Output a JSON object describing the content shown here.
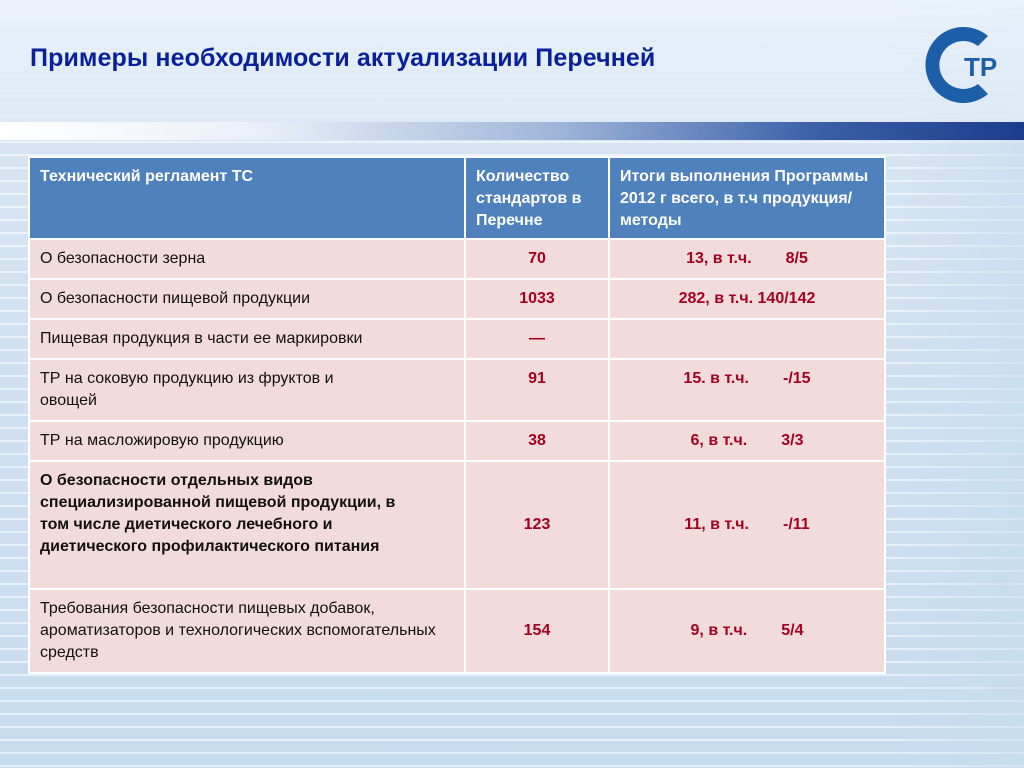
{
  "slide": {
    "title": "Примеры необходимости актуализации Перечней"
  },
  "logo": {
    "text": "ТР",
    "color": "#1c5fa8"
  },
  "table": {
    "headers": [
      "Технический регламент ТС",
      "Количество стандартов в Перечне",
      "Итоги выполнения Программы 2012 г всего, в т.ч продукция/методы"
    ],
    "rows": [
      {
        "name": "О безопасности зерна",
        "count": "70",
        "result_total": "13, в т.ч.",
        "result_split": "8/5"
      },
      {
        "name": "О безопасности пищевой продукции",
        "count": "1033",
        "result_total": "282, в т.ч. 140/142",
        "result_split": ""
      },
      {
        "name": "Пищевая продукция в части ее маркировки",
        "count": "—",
        "result_total": "",
        "result_split": ""
      },
      {
        "name": "ТР на соковую продукцию из фруктов и овощей",
        "count": "91",
        "result_total": "15. в т.ч.",
        "result_split": "-/15"
      },
      {
        "name": "ТР на масложировую продукцию",
        "count": "38",
        "result_total": "6, в т.ч.",
        "result_split": "3/3"
      },
      {
        "name": "О безопасности отдельных видов специализированной пищевой продукции, в том числе диетического лечебного и диетического профилактического питания",
        "count": "123",
        "result_total": "11, в т.ч.",
        "result_split": "-/11"
      },
      {
        "name": "Требования безопасности пищевых добавок, ароматизаторов и технологических вспомогательных средств",
        "count": "154",
        "result_total": "9, в т.ч.",
        "result_split": "5/4"
      }
    ]
  },
  "colors": {
    "title": "#0a1f9a",
    "header_bg": "#4f81bd",
    "cell_bg": "#f2dcdb",
    "value": "#a50021"
  }
}
